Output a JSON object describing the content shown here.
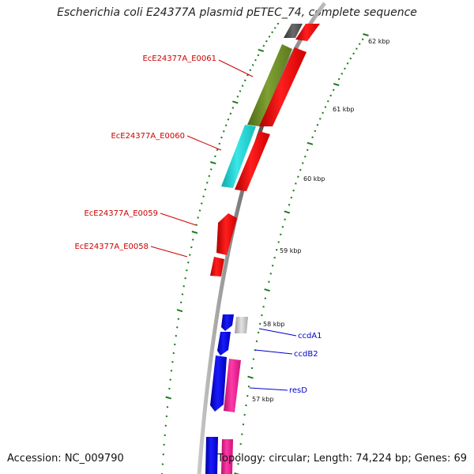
{
  "title": "Escherichia coli E24377A plasmid pETEC_74, complete sequence",
  "footer": {
    "accession": "Accession: NC_009790",
    "summary": "Topology: circular; Length: 74,224 bp; Genes: 69"
  },
  "colors": {
    "backbone": "#888888",
    "tick": "#1e7a1e",
    "red_label": "#cc0000",
    "blue_label": "#0000cc"
  },
  "kbp_labels": [
    "62 kbp",
    "61 kbp",
    "60 kbp",
    "59 kbp",
    "58 kbp",
    "57 kbp"
  ],
  "gene_labels": [
    {
      "text": "EcE24377A_E0061",
      "color": "#cc0000"
    },
    {
      "text": "EcE24377A_E0060",
      "color": "#cc0000"
    },
    {
      "text": "EcE24377A_E0059",
      "color": "#cc0000"
    },
    {
      "text": "EcE24377A_E0058",
      "color": "#cc0000"
    },
    {
      "text": "ccdA1",
      "color": "#0000cc"
    },
    {
      "text": "ccdB2",
      "color": "#0000cc"
    },
    {
      "text": "resD",
      "color": "#0000cc"
    }
  ],
  "features": [
    {
      "name": "dark-gray-feature",
      "color": "#555555"
    },
    {
      "name": "olive-feature",
      "color": "#6b8e23"
    },
    {
      "name": "cyan-feature",
      "color": "#1fcfcf"
    },
    {
      "name": "red-feature",
      "color": "#ff0000"
    },
    {
      "name": "blue-feature",
      "color": "#0000ee"
    },
    {
      "name": "light-gray-feature",
      "color": "#c8c8c8"
    },
    {
      "name": "magenta-feature",
      "color": "#ee1e8c"
    }
  ]
}
